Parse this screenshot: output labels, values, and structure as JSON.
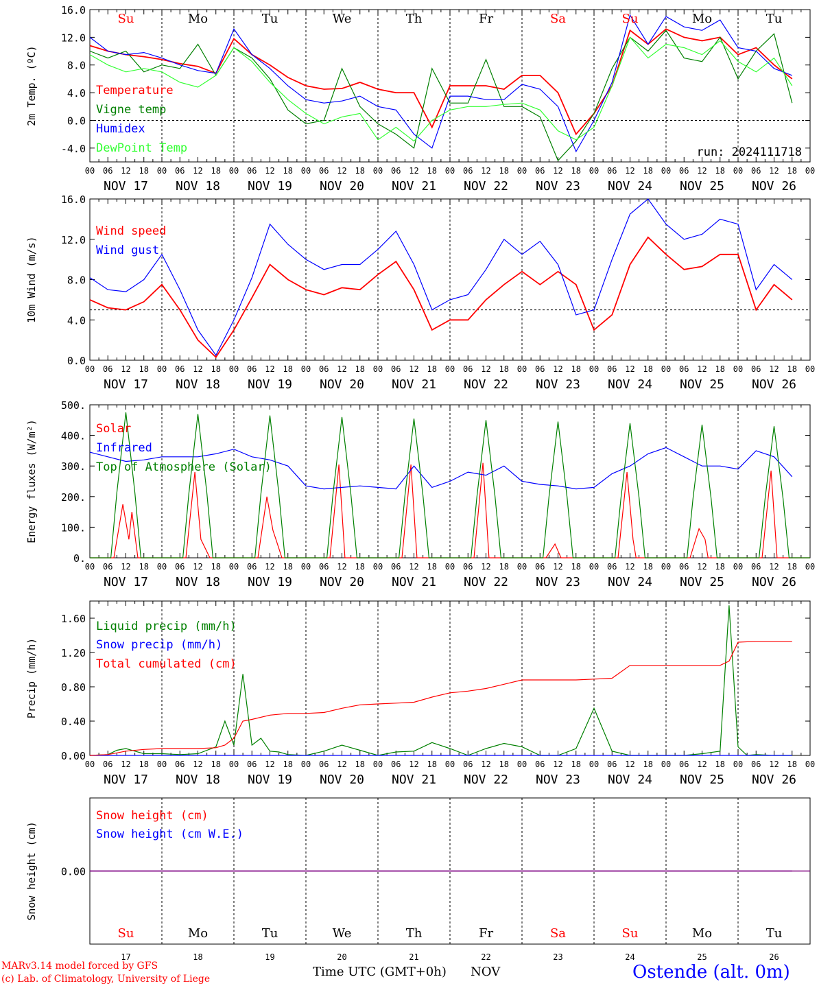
{
  "days": [
    "Su",
    "Mo",
    "Tu",
    "We",
    "Th",
    "Fr",
    "Sa",
    "Su",
    "Mo",
    "Tu"
  ],
  "day_colors": [
    "#ff0000",
    "#000000",
    "#000000",
    "#000000",
    "#000000",
    "#000000",
    "#ff0000",
    "#ff0000",
    "#000000",
    "#000000"
  ],
  "dates": [
    "NOV 17",
    "NOV 18",
    "NOV 19",
    "NOV 20",
    "NOV 21",
    "NOV 22",
    "NOV 23",
    "NOV 24",
    "NOV 25",
    "NOV 26"
  ],
  "hour_ticks": [
    "00",
    "06",
    "12",
    "18"
  ],
  "bottom_date_numbers": [
    "17",
    "18",
    "19",
    "20",
    "21",
    "22",
    "23",
    "24",
    "25",
    "26"
  ],
  "footer": {
    "credit1": "MARv3.14 model forced by GFS",
    "credit2": "(c) Lab. of Climatology, University of Liege",
    "xaxis_title": "Time UTC (GMT+0h)",
    "month": "NOV",
    "station": "Ostende (alt. 0m)"
  },
  "chart_data": [
    {
      "type": "line",
      "ylabel": "2m Temp. (ºC)",
      "ylim": [
        -6,
        16
      ],
      "yticks": [
        "16.0",
        "12.0",
        "8.0",
        "4.0",
        "0.0",
        "-4.0"
      ],
      "ytick_values": [
        16,
        12,
        8,
        4,
        0,
        -4
      ],
      "ref_line": 0,
      "run_label": "run: 2024111718",
      "x_unit": "hours since NOV 17 00 UTC",
      "series": [
        {
          "name": "Temperature",
          "color": "#ff0000",
          "x": [
            0,
            6,
            12,
            18,
            24,
            30,
            36,
            42,
            48,
            54,
            60,
            66,
            72,
            78,
            84,
            90,
            96,
            102,
            108,
            114,
            120,
            126,
            132,
            138,
            144,
            150,
            156,
            162,
            168,
            174,
            180,
            186,
            192,
            198,
            204,
            210,
            216,
            222,
            228,
            234
          ],
          "y": [
            10.8,
            10,
            9.5,
            9.2,
            8.8,
            8.2,
            7.8,
            6.8,
            11.8,
            9.5,
            8,
            6.2,
            5,
            4.5,
            4.6,
            5.5,
            4.5,
            4,
            4,
            -1,
            5,
            5,
            5,
            4.5,
            6.5,
            6.5,
            4,
            -2,
            1,
            5,
            13,
            11,
            13.2,
            12,
            11.5,
            12,
            9.5,
            10.5,
            8,
            6
          ]
        },
        {
          "name": "Vigne temp",
          "color": "#008000",
          "x": [
            0,
            6,
            12,
            18,
            24,
            30,
            36,
            42,
            48,
            54,
            60,
            66,
            72,
            78,
            84,
            90,
            96,
            102,
            108,
            114,
            120,
            126,
            132,
            138,
            144,
            150,
            156,
            162,
            168,
            174,
            180,
            186,
            192,
            198,
            204,
            210,
            216,
            222,
            228,
            234
          ],
          "y": [
            10,
            9,
            10,
            7,
            8,
            7.5,
            11,
            6.5,
            10.5,
            9,
            6,
            1.5,
            -0.5,
            0,
            7.5,
            2,
            -0.5,
            -2,
            -4,
            7.5,
            2.5,
            2.5,
            8.8,
            2,
            2,
            0.5,
            -5.8,
            -3,
            1,
            7.5,
            12,
            10,
            13,
            9,
            8.5,
            12,
            6,
            10,
            12.5,
            2.5
          ]
        },
        {
          "name": "Humidex",
          "color": "#0000ff",
          "x": [
            0,
            6,
            12,
            18,
            24,
            30,
            36,
            42,
            48,
            54,
            60,
            66,
            72,
            78,
            84,
            90,
            96,
            102,
            108,
            114,
            120,
            126,
            132,
            138,
            144,
            150,
            156,
            162,
            168,
            174,
            180,
            186,
            192,
            198,
            204,
            210,
            216,
            222,
            228,
            234
          ],
          "y": [
            12,
            10,
            9.5,
            9.8,
            9,
            8,
            7.2,
            6.8,
            13.2,
            9.5,
            7.5,
            5,
            3,
            2.5,
            2.8,
            3.5,
            2,
            1.5,
            -2,
            -4,
            3.5,
            3.5,
            3,
            3,
            5.2,
            4.5,
            2,
            -4.5,
            0,
            5.5,
            15.2,
            11,
            15,
            13.5,
            13,
            14.5,
            10.5,
            10,
            7.5,
            6.5
          ]
        },
        {
          "name": "DewPoint Temp",
          "color": "#33ff33",
          "x": [
            0,
            6,
            12,
            18,
            24,
            30,
            36,
            42,
            48,
            54,
            60,
            66,
            72,
            78,
            84,
            90,
            96,
            102,
            108,
            114,
            120,
            126,
            132,
            138,
            144,
            150,
            156,
            162,
            168,
            174,
            180,
            186,
            192,
            198,
            204,
            210,
            216,
            222,
            228,
            234
          ],
          "y": [
            9.5,
            8,
            7,
            7.5,
            7,
            5.5,
            4.8,
            6.5,
            10.5,
            8.5,
            5.5,
            3,
            1,
            -0.5,
            0.5,
            1,
            -2.8,
            -1,
            -3,
            0,
            1.5,
            2,
            2,
            2.3,
            2.5,
            1.5,
            -1.5,
            -2.8,
            -1,
            5,
            12,
            9,
            11,
            10.5,
            9.5,
            11.5,
            8.5,
            7,
            9,
            5
          ]
        }
      ]
    },
    {
      "type": "line",
      "ylabel": "10m Wind (m/s)",
      "ylim": [
        0,
        16
      ],
      "yticks": [
        "16.0",
        "12.0",
        "8.0",
        "4.0",
        "0.0"
      ],
      "ytick_values": [
        16,
        12,
        8,
        4,
        0
      ],
      "ref_line": 5,
      "series": [
        {
          "name": "Wind speed",
          "color": "#ff0000",
          "x": [
            0,
            6,
            12,
            18,
            24,
            30,
            36,
            42,
            48,
            54,
            60,
            66,
            72,
            78,
            84,
            90,
            96,
            102,
            108,
            114,
            120,
            126,
            132,
            138,
            144,
            150,
            156,
            162,
            168,
            174,
            180,
            186,
            192,
            198,
            204,
            210,
            216,
            222,
            228,
            234
          ],
          "y": [
            6,
            5.2,
            5,
            5.8,
            7.5,
            5,
            2,
            0.3,
            3,
            6.2,
            9.5,
            8,
            7,
            6.5,
            7.2,
            7,
            8.5,
            9.8,
            7,
            3,
            4,
            4,
            6,
            7.5,
            8.8,
            7.5,
            8.8,
            7.5,
            3,
            4.5,
            9.5,
            12.2,
            10.5,
            9,
            9.3,
            10.5,
            10.5,
            5,
            7.5,
            6
          ]
        },
        {
          "name": "Wind gust",
          "color": "#0000ff",
          "x": [
            0,
            6,
            12,
            18,
            24,
            30,
            36,
            42,
            48,
            54,
            60,
            66,
            72,
            78,
            84,
            90,
            96,
            102,
            108,
            114,
            120,
            126,
            132,
            138,
            144,
            150,
            156,
            162,
            168,
            174,
            180,
            186,
            192,
            198,
            204,
            210,
            216,
            222,
            228,
            234
          ],
          "y": [
            8.2,
            7,
            6.8,
            8,
            10.5,
            7,
            3,
            0.5,
            4,
            8.2,
            13.5,
            11.5,
            10,
            9,
            9.5,
            9.5,
            11,
            12.8,
            9.5,
            5,
            6,
            6.5,
            9,
            12,
            10.5,
            11.8,
            9.5,
            4.5,
            5,
            10,
            14.5,
            16,
            13.5,
            12,
            12.5,
            14,
            13.5,
            7,
            9.5,
            8
          ]
        }
      ]
    },
    {
      "type": "line",
      "ylabel": "Energy fluxes (W/m²)",
      "ylim": [
        0,
        500
      ],
      "yticks": [
        "500.",
        "400.",
        "300.",
        "200.",
        "100.",
        "0."
      ],
      "ytick_values": [
        500,
        400,
        300,
        200,
        100,
        0
      ],
      "series": [
        {
          "name": "Solar",
          "color": "#ff0000",
          "peaks": [
            175,
            280,
            200,
            305,
            305,
            310,
            45,
            280,
            95,
            285
          ],
          "peak_profiles": [
            [
              0,
              175,
              60,
              150,
              0
            ],
            [
              0,
              280,
              60,
              40,
              0
            ],
            [
              0,
              200,
              90,
              60,
              0
            ],
            [
              0,
              305,
              0,
              0,
              0
            ],
            [
              0,
              305,
              0,
              0,
              0
            ],
            [
              0,
              310,
              0,
              0,
              0
            ],
            [
              0,
              45,
              0,
              0,
              0
            ],
            [
              0,
              280,
              60,
              0,
              0
            ],
            [
              0,
              95,
              60,
              0,
              0
            ],
            [
              0,
              285,
              0,
              0,
              0
            ]
          ]
        },
        {
          "name": "Infrared",
          "color": "#0000ff",
          "x": [
            0,
            6,
            12,
            18,
            24,
            30,
            36,
            42,
            48,
            54,
            60,
            66,
            72,
            78,
            84,
            90,
            96,
            102,
            108,
            114,
            120,
            126,
            132,
            138,
            144,
            150,
            156,
            162,
            168,
            174,
            180,
            186,
            192,
            198,
            204,
            210,
            216,
            222,
            228,
            234
          ],
          "y": [
            345,
            330,
            315,
            320,
            330,
            330,
            330,
            340,
            355,
            330,
            320,
            300,
            235,
            225,
            230,
            235,
            230,
            225,
            300,
            230,
            250,
            280,
            270,
            300,
            250,
            240,
            235,
            225,
            230,
            275,
            300,
            340,
            360,
            330,
            300,
            300,
            290,
            350,
            330,
            265
          ]
        },
        {
          "name": "Top of Atmosphere (Solar)",
          "color": "#008000",
          "peaks": [
            475,
            470,
            465,
            460,
            455,
            450,
            445,
            440,
            435,
            430
          ]
        }
      ]
    },
    {
      "type": "line",
      "ylabel": "Precip (mm/h)",
      "ylim": [
        0,
        1.8
      ],
      "yticks": [
        "1.60",
        "1.20",
        "0.80",
        "0.40",
        "0.00"
      ],
      "ytick_values": [
        1.6,
        1.2,
        0.8,
        0.4,
        0
      ],
      "series": [
        {
          "name": "Liquid precip (mm/h)",
          "color": "#008000",
          "x": [
            0,
            6,
            9,
            12,
            15,
            18,
            24,
            30,
            36,
            42,
            45,
            48,
            51,
            54,
            57,
            60,
            63,
            66,
            72,
            78,
            84,
            90,
            96,
            102,
            108,
            114,
            120,
            126,
            132,
            138,
            144,
            150,
            156,
            162,
            168,
            174,
            180,
            183,
            186,
            192,
            198,
            204,
            210,
            213,
            216,
            219,
            222,
            228,
            234
          ],
          "y": [
            0,
            0.01,
            0.06,
            0.08,
            0.05,
            0.02,
            0.02,
            0.01,
            0.02,
            0.1,
            0.4,
            0.12,
            0.95,
            0.12,
            0.2,
            0.05,
            0.04,
            0.01,
            0,
            0.05,
            0.12,
            0.06,
            0,
            0.04,
            0.05,
            0.15,
            0.08,
            0,
            0.08,
            0.14,
            0.1,
            0,
            0,
            0.08,
            0.55,
            0.05,
            0,
            0,
            0,
            0,
            0,
            0.02,
            0.05,
            1.75,
            0.1,
            0,
            0.01,
            0,
            0
          ]
        },
        {
          "name": "Snow precip (mm/h)",
          "color": "#0000ff",
          "x": [
            0,
            234
          ],
          "y": [
            0,
            0
          ]
        },
        {
          "name": "Total cumulated (cm)",
          "color": "#ff0000",
          "x": [
            0,
            6,
            12,
            18,
            24,
            30,
            36,
            42,
            45,
            48,
            51,
            54,
            60,
            66,
            72,
            78,
            84,
            90,
            96,
            102,
            108,
            114,
            120,
            126,
            132,
            138,
            144,
            150,
            156,
            162,
            168,
            174,
            180,
            186,
            192,
            198,
            204,
            210,
            213,
            216,
            222,
            228,
            234
          ],
          "y": [
            0,
            0.01,
            0.05,
            0.07,
            0.08,
            0.08,
            0.08,
            0.09,
            0.12,
            0.2,
            0.4,
            0.42,
            0.47,
            0.49,
            0.49,
            0.5,
            0.55,
            0.59,
            0.6,
            0.61,
            0.62,
            0.68,
            0.73,
            0.75,
            0.78,
            0.83,
            0.88,
            0.88,
            0.88,
            0.88,
            0.89,
            0.9,
            1.05,
            1.05,
            1.05,
            1.05,
            1.05,
            1.05,
            1.1,
            1.32,
            1.33,
            1.33,
            1.33
          ]
        }
      ]
    },
    {
      "type": "line",
      "ylabel": "Snow height (cm)",
      "ylim": [
        -1,
        1
      ],
      "yticks": [
        "0.00"
      ],
      "ytick_values": [
        0
      ],
      "series": [
        {
          "name": "Snow height (cm)",
          "color": "#ff0000",
          "x": [
            0,
            234
          ],
          "y": [
            0,
            0
          ]
        },
        {
          "name": "Snow height (cm W.E.)",
          "color": "#0000ff",
          "x": [
            0,
            234
          ],
          "y": [
            0,
            0
          ]
        }
      ]
    }
  ]
}
